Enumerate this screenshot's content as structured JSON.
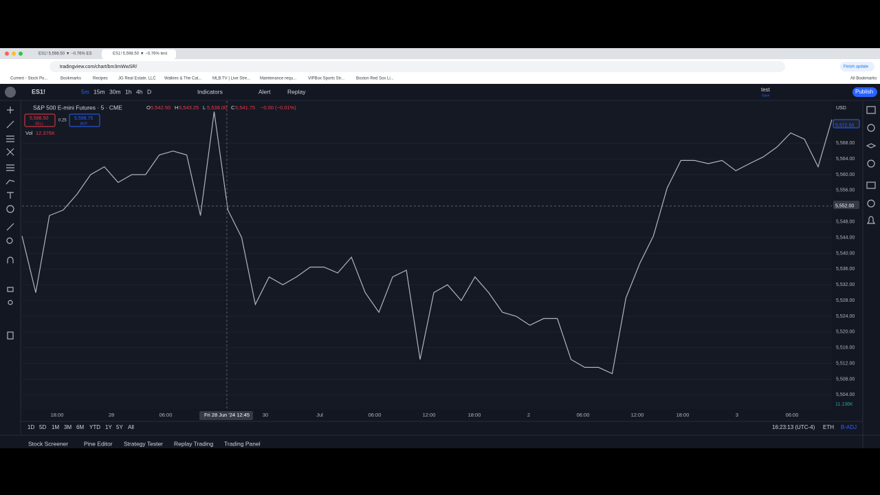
{
  "browser": {
    "tabs": [
      "ES1! 5,598.50 ▼ −0.76% ES",
      "ES1! 5,598.50 ▼ −0.76% test"
    ],
    "url": "tradingview.com/chart/bm3mWwSR/",
    "bookmarks": [
      "Current - Stock Po...",
      "Bookmarks",
      "Recipes",
      "JG Real Estate, LLC",
      "Walkies & The Cat...",
      "MLB.TV | Live Stre...",
      "Maintenance requ...",
      "VIPBox Sports Str...",
      "Boston Red Sox Li..."
    ],
    "finish_update": "Finish update",
    "all_bookmarks": "All Bookmarks"
  },
  "toolbar": {
    "symbol": "ES1!",
    "intervals": [
      "5m",
      "15m",
      "30m",
      "1h",
      "4h",
      "D"
    ],
    "indicators": "Indicators",
    "alert": "Alert",
    "replay": "Replay",
    "layout": "test",
    "layout_status": "Save",
    "publish": "Publish"
  },
  "legend": {
    "title": "S&P 500 E-mini Futures · 5 · CME",
    "ohlc": [
      {
        "label": "O",
        "value": "5,542.50"
      },
      {
        "label": "H",
        "value": "5,543.25"
      },
      {
        "label": "L",
        "value": "5,538.00"
      },
      {
        "label": "C",
        "value": "5,541.75"
      }
    ],
    "change": "−0.00 (−0.01%)",
    "sell_price": "5,598.50",
    "sell": "SELL",
    "spread": "0.25",
    "buy_price": "5,598.75",
    "buy": "BUY",
    "vol_label": "Vol",
    "vol_value": "12.376K"
  },
  "price_axis": {
    "currency": "USD",
    "ticks": [
      {
        "value": 5568,
        "label": "5,568.00"
      },
      {
        "value": 5564,
        "label": "5,564.00"
      },
      {
        "value": 5560,
        "label": "5,560.00"
      },
      {
        "value": 5556,
        "label": "5,556.00"
      },
      {
        "value": 5548,
        "label": "5,548.00"
      },
      {
        "value": 5544,
        "label": "5,544.00"
      },
      {
        "value": 5540,
        "label": "5,540.00"
      },
      {
        "value": 5536,
        "label": "5,536.00"
      },
      {
        "value": 5532,
        "label": "5,532.00"
      },
      {
        "value": 5528,
        "label": "5,528.00"
      },
      {
        "value": 5524,
        "label": "5,524.00"
      },
      {
        "value": 5520,
        "label": "5,520.00"
      },
      {
        "value": 5516,
        "label": "5,516.00"
      },
      {
        "value": 5512,
        "label": "5,512.00"
      },
      {
        "value": 5508,
        "label": "5,508.00"
      },
      {
        "value": 5504,
        "label": "5,504.00"
      }
    ],
    "last_price": {
      "value": 5572.5,
      "label": "5,572.50"
    },
    "crosshair": {
      "value": 5552,
      "label": "5,552.00"
    },
    "volume": "11.136K"
  },
  "chart_data": {
    "type": "line",
    "color": "#b2b5be",
    "ylim": [
      5500.4,
      5578.7
    ],
    "values": [
      5544.4,
      5530,
      5549.6,
      5551,
      5555,
      5560,
      5562,
      5558,
      5560,
      5560,
      5565,
      5566,
      5565,
      5549.6,
      5576,
      5551,
      5544,
      5527,
      5534,
      5532,
      5534,
      5536.5,
      5536.5,
      5535,
      5539,
      5530,
      5525,
      5534,
      5535.7,
      5513,
      5530,
      5532,
      5528,
      5534,
      5530,
      5525,
      5524,
      5521.7,
      5523.4,
      5523.4,
      5513,
      5511,
      5511,
      5509.4,
      5528.7,
      5537.4,
      5544.4,
      5556.6,
      5563.6,
      5563.6,
      5562.8,
      5563.6,
      5561,
      5562.8,
      5564.5,
      5567,
      5570.6,
      5569,
      5562,
      5574
    ]
  },
  "time_axis": {
    "labels": [
      "18:00",
      "28",
      "06:00",
      "30",
      "Jul",
      "06:00",
      "12:00",
      "18:00",
      "2",
      "06:00",
      "12:00",
      "18:00",
      "3",
      "06:00"
    ],
    "crosshair": "Fri 28 Jun '24  12:45"
  },
  "range_bar": {
    "ranges": [
      "1D",
      "5D",
      "1M",
      "3M",
      "6M",
      "YTD",
      "1Y",
      "5Y",
      "All"
    ],
    "clock": "16:23:13 (UTC-4)",
    "session": "ETH",
    "adjust": "B-ADJ"
  },
  "panels": [
    "Stock Screener",
    "Pine Editor",
    "Strategy Tester",
    "Replay Trading",
    "Trading Panel"
  ]
}
